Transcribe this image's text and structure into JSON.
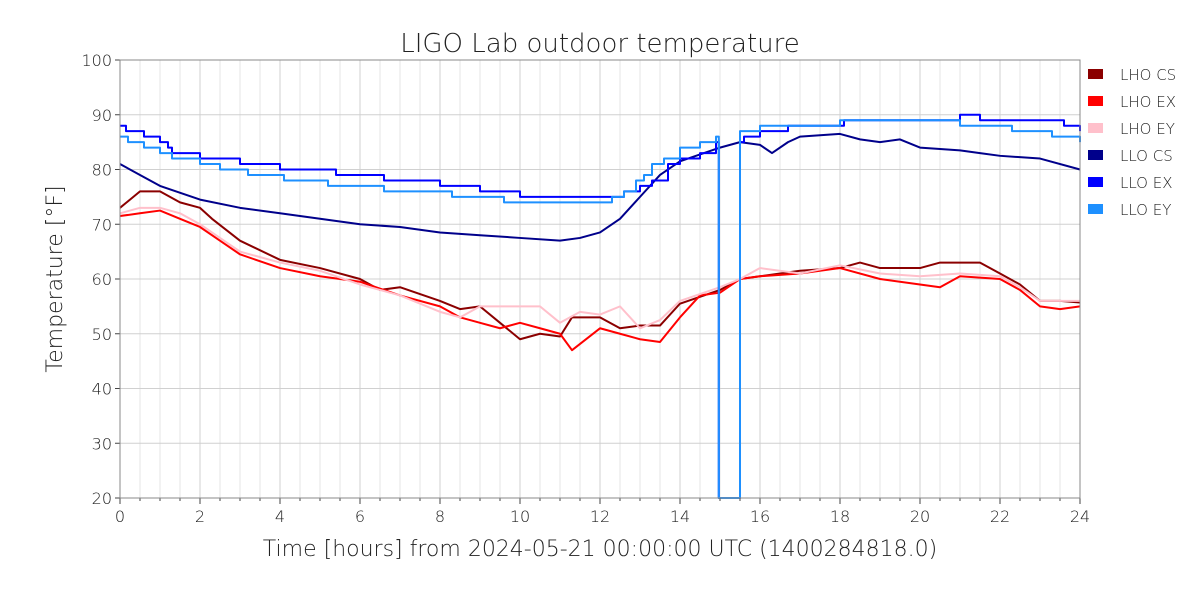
{
  "chart_data": {
    "type": "line",
    "title": "LIGO Lab outdoor temperature",
    "xlabel": "Time [hours] from 2024-05-21 00:00:00 UTC (1400284818.0)",
    "ylabel": "Temperature [°F]",
    "xlim": [
      0,
      24
    ],
    "ylim": [
      20,
      100
    ],
    "xticks": [
      "0",
      "2",
      "4",
      "6",
      "8",
      "10",
      "12",
      "14",
      "16",
      "18",
      "20",
      "22",
      "24"
    ],
    "yticks": [
      "20",
      "30",
      "40",
      "50",
      "60",
      "70",
      "80",
      "90",
      "100"
    ],
    "grid": true,
    "legend_position": "right",
    "series": [
      {
        "name": "LHO CS",
        "color": "#8b0000",
        "step": false,
        "points": [
          [
            0,
            73
          ],
          [
            0.25,
            74.5
          ],
          [
            0.5,
            76
          ],
          [
            1,
            76
          ],
          [
            1.5,
            74
          ],
          [
            2,
            73
          ],
          [
            2.3,
            71
          ],
          [
            3,
            67
          ],
          [
            4,
            63.5
          ],
          [
            5,
            62
          ],
          [
            6,
            60
          ],
          [
            6.5,
            58
          ],
          [
            7,
            58.5
          ],
          [
            8,
            56
          ],
          [
            8.5,
            54.5
          ],
          [
            9,
            55
          ],
          [
            9.5,
            52
          ],
          [
            10,
            49
          ],
          [
            10.5,
            50
          ],
          [
            11,
            49.5
          ],
          [
            11.3,
            53
          ],
          [
            12,
            53
          ],
          [
            12.5,
            51
          ],
          [
            13,
            51.5
          ],
          [
            13.5,
            51.5
          ],
          [
            14,
            55.5
          ],
          [
            15,
            58
          ],
          [
            15.5,
            60
          ],
          [
            16,
            60.5
          ],
          [
            17,
            61.5
          ],
          [
            18,
            62
          ],
          [
            18.5,
            63
          ],
          [
            19,
            62
          ],
          [
            20,
            62
          ],
          [
            20.5,
            63
          ],
          [
            21,
            63
          ],
          [
            21.5,
            63
          ],
          [
            22,
            61
          ],
          [
            22.5,
            59
          ],
          [
            23,
            56
          ],
          [
            23.5,
            56
          ],
          [
            24,
            55.7
          ]
        ]
      },
      {
        "name": "LHO EX",
        "color": "#ff0000",
        "step": false,
        "points": [
          [
            0,
            71.5
          ],
          [
            0.5,
            72
          ],
          [
            1,
            72.5
          ],
          [
            1.5,
            71
          ],
          [
            2,
            69.5
          ],
          [
            2.5,
            67
          ],
          [
            3,
            64.5
          ],
          [
            4,
            62
          ],
          [
            5,
            60.5
          ],
          [
            6,
            59.5
          ],
          [
            7,
            57
          ],
          [
            8,
            55
          ],
          [
            8.5,
            53
          ],
          [
            9,
            52
          ],
          [
            9.5,
            51
          ],
          [
            10,
            52
          ],
          [
            10.5,
            51
          ],
          [
            11,
            50
          ],
          [
            11.3,
            47
          ],
          [
            12,
            51
          ],
          [
            12.5,
            50
          ],
          [
            13,
            49
          ],
          [
            13.5,
            48.5
          ],
          [
            14,
            53
          ],
          [
            14.5,
            57
          ],
          [
            15,
            57.5
          ],
          [
            15.5,
            60
          ],
          [
            16,
            60.5
          ],
          [
            17,
            61
          ],
          [
            18,
            62
          ],
          [
            19,
            60
          ],
          [
            20,
            59
          ],
          [
            20.5,
            58.5
          ],
          [
            21,
            60.5
          ],
          [
            22,
            60
          ],
          [
            22.5,
            58
          ],
          [
            23,
            55
          ],
          [
            23.5,
            54.5
          ],
          [
            24,
            55
          ]
        ]
      },
      {
        "name": "LHO EY",
        "color": "#ffc0cb",
        "step": false,
        "points": [
          [
            0,
            72
          ],
          [
            0.5,
            73
          ],
          [
            1,
            73
          ],
          [
            1.5,
            72
          ],
          [
            2,
            70
          ],
          [
            2.5,
            67.5
          ],
          [
            3,
            65
          ],
          [
            4,
            63
          ],
          [
            5,
            61.5
          ],
          [
            6,
            59
          ],
          [
            7,
            57
          ],
          [
            8,
            54
          ],
          [
            8.5,
            53
          ],
          [
            9,
            55
          ],
          [
            10,
            55
          ],
          [
            10.5,
            55
          ],
          [
            11,
            52
          ],
          [
            11.5,
            54
          ],
          [
            12,
            53.5
          ],
          [
            12.5,
            55
          ],
          [
            13,
            51
          ],
          [
            13.5,
            52.5
          ],
          [
            14,
            56
          ],
          [
            15,
            58.5
          ],
          [
            15.5,
            60
          ],
          [
            16,
            62
          ],
          [
            17,
            61
          ],
          [
            18,
            62.5
          ],
          [
            19,
            61
          ],
          [
            20,
            60.5
          ],
          [
            21,
            61
          ],
          [
            22,
            60.5
          ],
          [
            22.5,
            58.5
          ],
          [
            23,
            56
          ],
          [
            24,
            56
          ]
        ]
      },
      {
        "name": "LLO CS",
        "color": "#00008b",
        "step": false,
        "points": [
          [
            0,
            81
          ],
          [
            0.5,
            79
          ],
          [
            1,
            77
          ],
          [
            2,
            74.5
          ],
          [
            3,
            73
          ],
          [
            4,
            72
          ],
          [
            5,
            71
          ],
          [
            6,
            70
          ],
          [
            7,
            69.5
          ],
          [
            8,
            68.5
          ],
          [
            9,
            68
          ],
          [
            10,
            67.5
          ],
          [
            11,
            67
          ],
          [
            11.5,
            67.5
          ],
          [
            12,
            68.5
          ],
          [
            12.5,
            71
          ],
          [
            13,
            75
          ],
          [
            13.5,
            79
          ],
          [
            14,
            81.5
          ],
          [
            15,
            84
          ],
          [
            15.5,
            85
          ],
          [
            16,
            84.5
          ],
          [
            16.3,
            83
          ],
          [
            16.7,
            85
          ],
          [
            17,
            86
          ],
          [
            18,
            86.5
          ],
          [
            18.5,
            85.5
          ],
          [
            19,
            85
          ],
          [
            19.5,
            85.5
          ],
          [
            20,
            84
          ],
          [
            21,
            83.5
          ],
          [
            21.5,
            83
          ],
          [
            22,
            82.5
          ],
          [
            23,
            82
          ],
          [
            24,
            80
          ]
        ]
      },
      {
        "name": "LLO EX",
        "color": "#0000ff",
        "step": true,
        "points": [
          [
            0,
            88
          ],
          [
            0.15,
            87
          ],
          [
            0.6,
            86
          ],
          [
            1.0,
            85
          ],
          [
            1.2,
            84
          ],
          [
            1.3,
            83
          ],
          [
            2.0,
            82
          ],
          [
            3.0,
            81
          ],
          [
            4.0,
            80
          ],
          [
            5.4,
            79
          ],
          [
            6.6,
            78
          ],
          [
            8.0,
            77
          ],
          [
            9.0,
            76
          ],
          [
            10.0,
            75
          ],
          [
            12.2,
            75
          ],
          [
            12.6,
            76
          ],
          [
            13.0,
            77
          ],
          [
            13.3,
            78
          ],
          [
            13.7,
            81
          ],
          [
            14.0,
            82
          ],
          [
            14.5,
            83
          ],
          [
            14.9,
            85
          ],
          [
            14.97,
            20
          ],
          [
            15.5,
            85
          ],
          [
            15.6,
            86
          ],
          [
            16.0,
            87
          ],
          [
            16.7,
            88
          ],
          [
            18.0,
            88
          ],
          [
            18.1,
            89
          ],
          [
            20.8,
            89
          ],
          [
            21.0,
            90
          ],
          [
            21.5,
            89
          ],
          [
            23.5,
            89
          ],
          [
            23.6,
            88
          ],
          [
            24,
            87
          ]
        ]
      },
      {
        "name": "LLO EY",
        "color": "#1e90ff",
        "step": true,
        "points": [
          [
            0,
            86
          ],
          [
            0.2,
            85
          ],
          [
            0.6,
            84
          ],
          [
            1.0,
            83
          ],
          [
            1.3,
            82
          ],
          [
            2.0,
            81
          ],
          [
            2.5,
            80
          ],
          [
            3.2,
            79
          ],
          [
            4.1,
            78
          ],
          [
            5.2,
            77
          ],
          [
            6.6,
            76
          ],
          [
            8.3,
            75
          ],
          [
            9.6,
            74
          ],
          [
            12.0,
            74
          ],
          [
            12.3,
            75
          ],
          [
            12.6,
            76
          ],
          [
            12.9,
            78
          ],
          [
            13.1,
            79
          ],
          [
            13.3,
            81
          ],
          [
            13.6,
            82
          ],
          [
            14.0,
            84
          ],
          [
            14.5,
            85
          ],
          [
            14.9,
            86
          ],
          [
            14.97,
            20
          ],
          [
            15.5,
            87
          ],
          [
            16.0,
            88
          ],
          [
            18.0,
            89
          ],
          [
            20.8,
            89
          ],
          [
            21.0,
            88
          ],
          [
            22.2,
            88
          ],
          [
            22.3,
            87
          ],
          [
            23.3,
            86
          ],
          [
            24,
            85
          ]
        ]
      }
    ]
  }
}
